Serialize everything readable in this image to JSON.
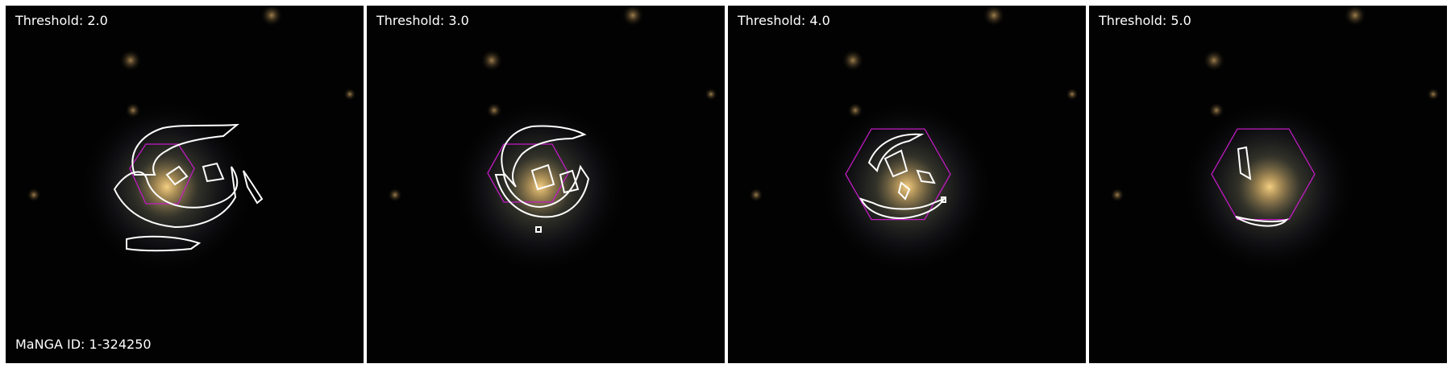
{
  "figure": {
    "panels": [
      {
        "threshold_label": "Threshold: 2.0"
      },
      {
        "threshold_label": "Threshold: 3.0"
      },
      {
        "threshold_label": "Threshold: 4.0"
      },
      {
        "threshold_label": "Threshold: 5.0"
      }
    ],
    "manga_id_label": "MaNGA ID: 1-324250"
  },
  "colors": {
    "background": "#020202",
    "contour": "#ffffff",
    "hexagon": "#c21bc2",
    "galaxy_core": "#f2c87a"
  },
  "icons": [
    "galaxy-image",
    "contour-overlay",
    "ifu-hexagon"
  ]
}
